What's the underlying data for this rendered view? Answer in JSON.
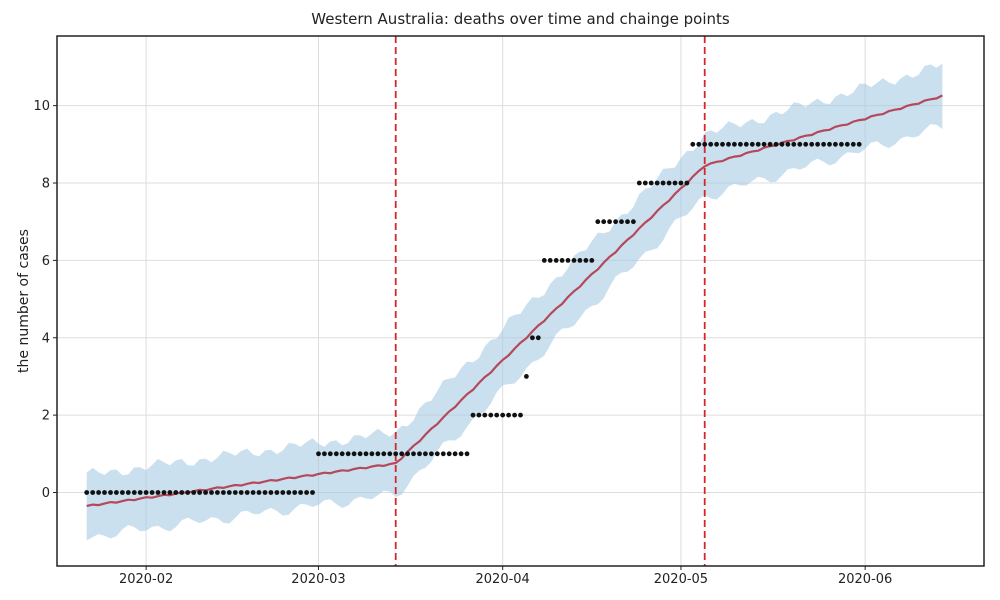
{
  "chart_data": {
    "type": "scatter",
    "title": "Western Australia: deaths over time and chainge points",
    "xlabel": "",
    "ylabel": "the number of cases",
    "x_range": [
      "2020-01-17",
      "2020-06-21"
    ],
    "ylim": [
      -1.9,
      11.8
    ],
    "x_ticks": [
      "2020-02-01",
      "2020-03-01",
      "2020-04-01",
      "2020-05-01",
      "2020-06-01"
    ],
    "x_tick_labels": [
      "2020-02",
      "2020-03",
      "2020-04",
      "2020-05",
      "2020-06"
    ],
    "y_ticks": [
      0,
      2,
      4,
      6,
      8,
      10
    ],
    "y_tick_labels": [
      "0",
      "2",
      "4",
      "6",
      "8",
      "10"
    ],
    "grid": true,
    "changepoints": [
      "2020-03-14",
      "2020-05-05"
    ],
    "observed": [
      {
        "from": "2020-01-22",
        "to": "2020-02-29",
        "value": 0
      },
      {
        "from": "2020-03-01",
        "to": "2020-03-26",
        "value": 1
      },
      {
        "from": "2020-03-27",
        "to": "2020-04-04",
        "value": 2
      },
      {
        "from": "2020-04-05",
        "to": "2020-04-05",
        "value": 3
      },
      {
        "from": "2020-04-06",
        "to": "2020-04-07",
        "value": 4
      },
      {
        "from": "2020-04-08",
        "to": "2020-04-16",
        "value": 6
      },
      {
        "from": "2020-04-17",
        "to": "2020-04-23",
        "value": 7
      },
      {
        "from": "2020-04-24",
        "to": "2020-05-02",
        "value": 8
      },
      {
        "from": "2020-05-03",
        "to": "2020-05-31",
        "value": 9
      }
    ],
    "trend": [
      {
        "date": "2020-01-22",
        "value": -0.35
      },
      {
        "date": "2020-03-14",
        "value": 0.75
      },
      {
        "date": "2020-05-05",
        "value": 8.45
      },
      {
        "date": "2020-06-14",
        "value": 10.25
      }
    ],
    "uncertainty_halfwidth": 0.8,
    "colors": {
      "points": "#111111",
      "trend": "#b5495b",
      "band": "#a6cbe3",
      "changepoint": "#d62728",
      "grid": "#dddddd"
    }
  }
}
